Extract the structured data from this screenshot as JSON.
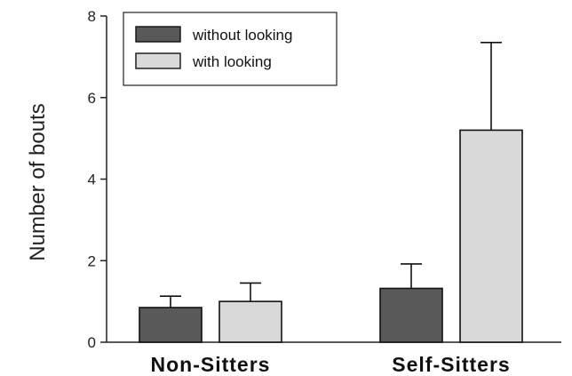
{
  "chart_data": {
    "type": "bar",
    "title": "",
    "xlabel": "",
    "ylabel": "Number of bouts",
    "ylim": [
      0,
      8
    ],
    "yticks": [
      "0",
      "2",
      "4",
      "6",
      "8"
    ],
    "categories": [
      "Non-Sitters",
      "Self-Sitters"
    ],
    "series": [
      {
        "name": "without looking",
        "color": "#595959",
        "values": [
          0.85,
          1.32
        ],
        "error": [
          0.28,
          0.6
        ]
      },
      {
        "name": "with looking",
        "color": "#d9d9d9",
        "values": [
          1.0,
          5.2
        ],
        "error": [
          0.45,
          2.15
        ]
      }
    ],
    "legend_position": "top-left",
    "grid": false
  }
}
